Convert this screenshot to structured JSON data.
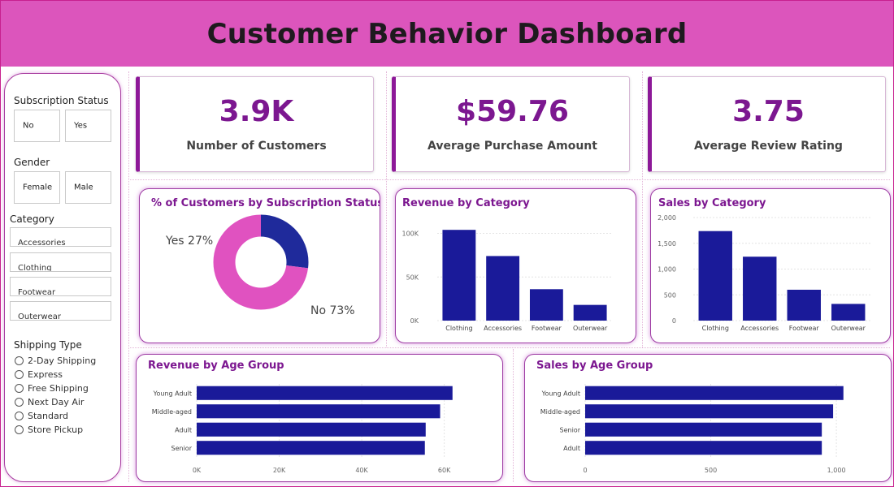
{
  "header": {
    "title": "Customer Behavior Dashboard"
  },
  "slicers": {
    "subscription": {
      "title": "Subscription Status",
      "options": [
        "No",
        "Yes"
      ]
    },
    "gender": {
      "title": "Gender",
      "options": [
        "Female",
        "Male"
      ]
    },
    "category": {
      "title": "Category",
      "options": [
        "Accessories",
        "Clothing",
        "Footwear",
        "Outerwear"
      ]
    },
    "shipping": {
      "title": "Shipping Type",
      "options": [
        "2-Day Shipping",
        "Express",
        "Free Shipping",
        "Next Day Air",
        "Standard",
        "Store Pickup"
      ]
    }
  },
  "kpis": [
    {
      "value": "3.9K",
      "label": "Number of Customers"
    },
    {
      "value": "$59.76",
      "label": "Average Purchase Amount"
    },
    {
      "value": "3.75",
      "label": "Average Review Rating"
    }
  ],
  "colors": {
    "accent": "#7c1790",
    "bar": "#1a1a99",
    "donut_no": "#e052c0",
    "donut_yes": "#1f2a9b",
    "header": "#dc55bc"
  },
  "chart_data": [
    {
      "id": "subscription_donut",
      "type": "pie",
      "title": "% of Customers by Subscription Status",
      "categories": [
        "Yes",
        "No"
      ],
      "values": [
        27,
        73
      ],
      "labels": [
        "Yes 27%",
        "No 73%"
      ]
    },
    {
      "id": "revenue_by_category",
      "type": "bar",
      "title": "Revenue by Category",
      "categories": [
        "Clothing",
        "Accessories",
        "Footwear",
        "Outerwear"
      ],
      "values": [
        104000,
        74000,
        36000,
        18000
      ],
      "ylim": [
        0,
        120000
      ],
      "yticks": [
        0,
        50000,
        100000
      ],
      "ytick_labels": [
        "0K",
        "50K",
        "100K"
      ],
      "grid": true
    },
    {
      "id": "sales_by_category",
      "type": "bar",
      "title": "Sales by Category",
      "categories": [
        "Clothing",
        "Accessories",
        "Footwear",
        "Outerwear"
      ],
      "values": [
        1737,
        1240,
        599,
        324
      ],
      "ylim": [
        0,
        2000
      ],
      "yticks": [
        0,
        500,
        1000,
        1500,
        2000
      ],
      "ytick_labels": [
        "0",
        "500",
        "1,000",
        "1,500",
        "2,000"
      ],
      "grid": true
    },
    {
      "id": "revenue_by_age",
      "type": "bar",
      "orientation": "horizontal",
      "title": "Revenue by Age Group",
      "categories": [
        "Young Adult",
        "Middle-aged",
        "Adult",
        "Senior"
      ],
      "values": [
        62000,
        59000,
        55500,
        55300
      ],
      "xlim": [
        0,
        65000
      ],
      "xticks": [
        0,
        20000,
        40000,
        60000
      ],
      "xtick_labels": [
        "0K",
        "20K",
        "40K",
        "60K"
      ],
      "grid": true
    },
    {
      "id": "sales_by_age",
      "type": "bar",
      "orientation": "horizontal",
      "title": "Sales by Age Group",
      "categories": [
        "Young Adult",
        "Middle-aged",
        "Senior",
        "Adult"
      ],
      "values": [
        1028,
        987,
        942,
        942
      ],
      "xlim": [
        0,
        1100
      ],
      "xticks": [
        0,
        500,
        1000
      ],
      "xtick_labels": [
        "0",
        "500",
        "1,000"
      ],
      "grid": true
    }
  ]
}
